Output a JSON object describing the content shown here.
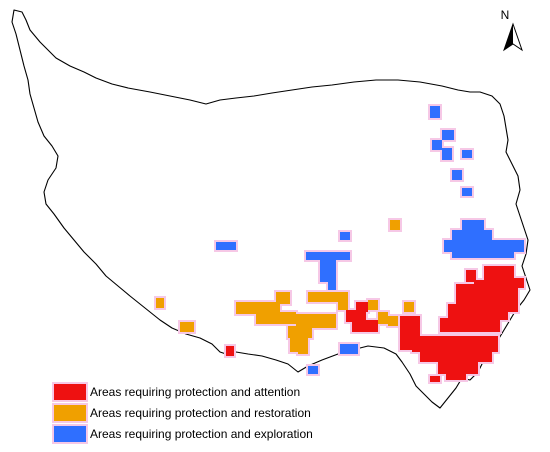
{
  "north_arrow": {
    "label": "N"
  },
  "colors": {
    "attention": "#ee1111",
    "restoration": "#f0a000",
    "exploration": "#2f6fff",
    "halo": "#f6c8e6",
    "outline": "#000000"
  },
  "legend": [
    {
      "key": "attention",
      "label": "Areas requiring protection and attention"
    },
    {
      "key": "restoration",
      "label": "Areas requiring protection and restoration"
    },
    {
      "key": "exploration",
      "label": "Areas requiring protection and exploration"
    }
  ]
}
